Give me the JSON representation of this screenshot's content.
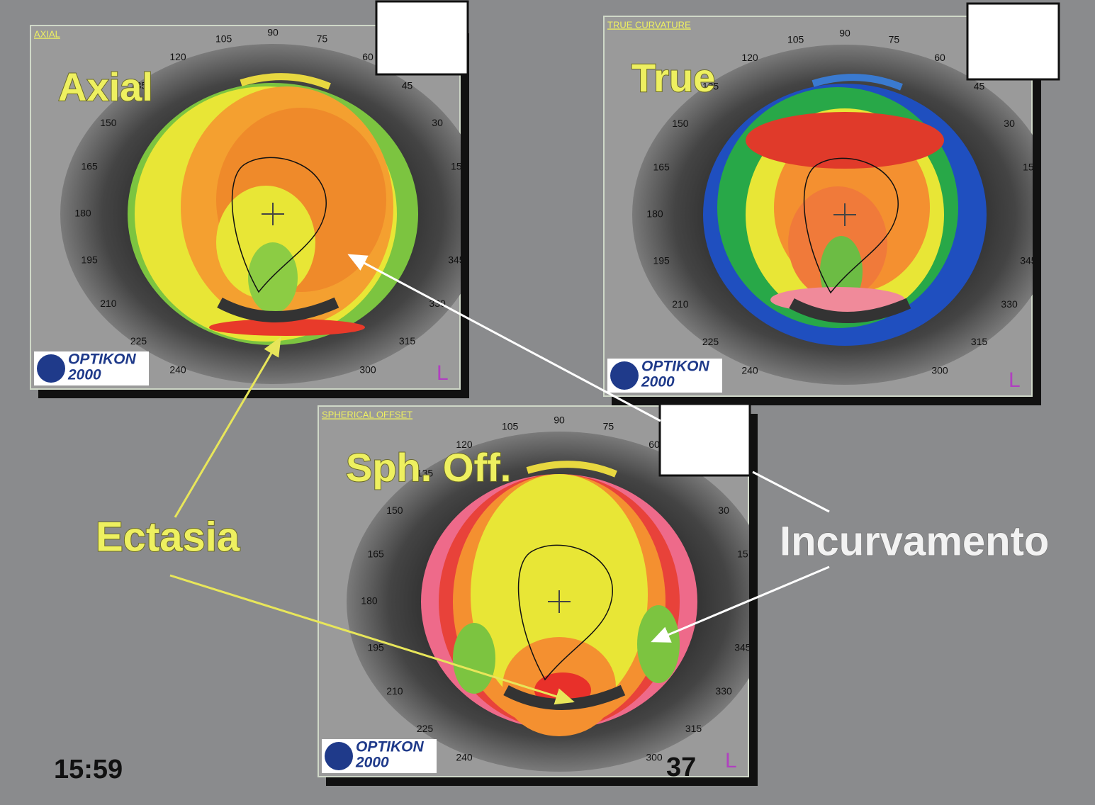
{
  "panels": [
    {
      "header": "AXIAL",
      "label": "Axial",
      "angles": [
        105,
        90,
        75,
        120,
        60,
        135,
        45,
        150,
        30,
        165,
        15,
        180,
        195,
        345,
        210,
        330,
        225,
        315,
        240,
        300
      ],
      "logo": {
        "name": "OPTIKON",
        "model": "2000"
      },
      "eye": "L"
    },
    {
      "header": "TRUE CURVATURE",
      "label": "True",
      "angles": [
        105,
        90,
        75,
        120,
        60,
        135,
        45,
        150,
        30,
        165,
        15,
        180,
        195,
        345,
        210,
        330,
        225,
        315,
        240,
        300
      ],
      "logo": {
        "name": "OPTIKON",
        "model": "2000"
      },
      "eye": "L"
    },
    {
      "header": "SPHERICAL OFFSET",
      "label": "Sph. Off.",
      "angles": [
        105,
        90,
        75,
        120,
        60,
        135,
        45,
        150,
        30,
        165,
        15,
        180,
        195,
        345,
        210,
        330,
        225,
        315,
        240,
        300
      ],
      "logo": {
        "name": "OPTIKON",
        "model": "2000"
      },
      "eye": "L"
    }
  ],
  "annotations": {
    "ectasia": "Ectasia",
    "incurvamento": "Incurvamento"
  },
  "footer": {
    "time": "15:59",
    "page": "37"
  }
}
